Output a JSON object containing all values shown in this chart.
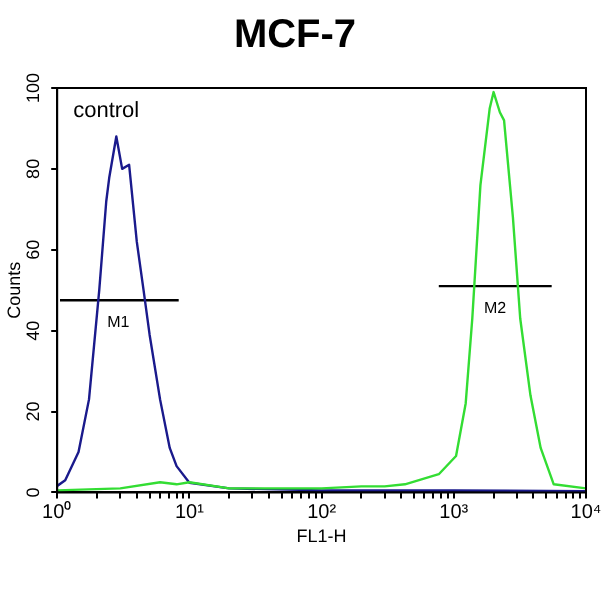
{
  "chart_data": {
    "type": "line",
    "title": "MCF-7",
    "xlabel": "FL1-H",
    "ylabel": "Counts",
    "log": "x",
    "xlim": [
      1,
      10000
    ],
    "ylim": [
      0,
      100
    ],
    "grid": false,
    "legend": false,
    "marker": "none",
    "line_style": "solid",
    "xticks": [
      {
        "value": 1,
        "label": "10⁰"
      },
      {
        "value": 2,
        "label": null
      },
      {
        "value": 3,
        "label": null
      },
      {
        "value": 4,
        "label": null
      },
      {
        "value": 5,
        "label": null
      },
      {
        "value": 6,
        "label": null
      },
      {
        "value": 7,
        "label": null
      },
      {
        "value": 8,
        "label": null
      },
      {
        "value": 9,
        "label": null
      },
      {
        "value": 10,
        "label": "10¹"
      },
      {
        "value": 20,
        "label": null
      },
      {
        "value": 30,
        "label": null
      },
      {
        "value": 40,
        "label": null
      },
      {
        "value": 50,
        "label": null
      },
      {
        "value": 60,
        "label": null
      },
      {
        "value": 70,
        "label": null
      },
      {
        "value": 80,
        "label": null
      },
      {
        "value": 90,
        "label": null
      },
      {
        "value": 100,
        "label": "10²"
      },
      {
        "value": 200,
        "label": null
      },
      {
        "value": 300,
        "label": null
      },
      {
        "value": 400,
        "label": null
      },
      {
        "value": 500,
        "label": null
      },
      {
        "value": 600,
        "label": null
      },
      {
        "value": 700,
        "label": null
      },
      {
        "value": 800,
        "label": null
      },
      {
        "value": 900,
        "label": null
      },
      {
        "value": 1000,
        "label": "10³"
      },
      {
        "value": 2000,
        "label": null
      },
      {
        "value": 3000,
        "label": null
      },
      {
        "value": 4000,
        "label": null
      },
      {
        "value": 5000,
        "label": null
      },
      {
        "value": 6000,
        "label": null
      },
      {
        "value": 7000,
        "label": null
      },
      {
        "value": 8000,
        "label": null
      },
      {
        "value": 9000,
        "label": null
      },
      {
        "value": 10000,
        "label": "10⁴"
      }
    ],
    "yticks": [
      0,
      20,
      40,
      60,
      80,
      100
    ],
    "series": [
      {
        "color": "#33dd33",
        "x": [
          1,
          3,
          6,
          8,
          10,
          20,
          50,
          100,
          200,
          300,
          427,
          770,
          1040,
          1230,
          1380,
          1590,
          1870,
          2000,
          2230,
          2400,
          2800,
          3180,
          3800,
          4540,
          5700,
          10000
        ],
        "values": [
          0.5,
          1,
          2.5,
          2,
          2.5,
          1,
          1,
          1,
          1.5,
          1.5,
          2,
          4.5,
          9,
          22,
          43,
          76,
          95,
          99,
          94,
          92,
          68,
          43,
          24,
          11,
          2,
          1
        ]
      },
      {
        "color": "#1a1a8c",
        "x": [
          1,
          1.15,
          1.45,
          1.74,
          2.08,
          2.35,
          2.48,
          2.8,
          3.1,
          3.5,
          4,
          4.5,
          5,
          6,
          7.1,
          8,
          10,
          20,
          100,
          1000,
          10000
        ],
        "values": [
          1.6,
          3,
          10,
          23,
          50,
          72,
          78,
          88,
          80,
          81,
          62,
          50,
          39,
          23,
          11,
          6.5,
          2.4,
          1,
          0.5,
          0.5,
          0.3
        ]
      },
      {
        "color": "#000000",
        "x": [
          1.05,
          8.3
        ],
        "values": [
          47.5,
          47.5
        ]
      },
      {
        "color": "#000000",
        "x": [
          770,
          5500
        ],
        "values": [
          51,
          51
        ]
      }
    ],
    "annotations": [
      "control",
      {
        "text": "M1",
        "x": 2.9,
        "y": 47.5
      },
      {
        "text": "M2",
        "x": 2050,
        "y": 51
      }
    ]
  }
}
